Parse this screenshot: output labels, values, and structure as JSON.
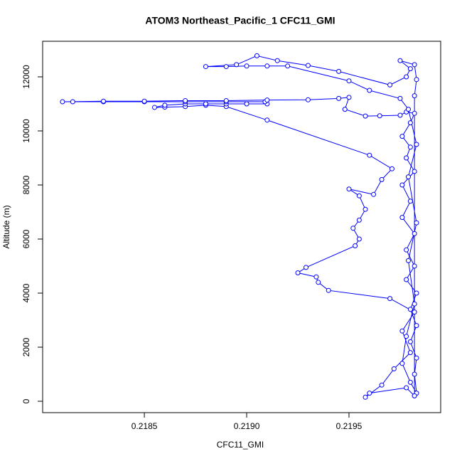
{
  "chart_data": {
    "type": "line",
    "title": "ATOM3 Northeast_Pacific_1 CFC11_GMI",
    "x_label": "CFC11_GMI",
    "y_label": "Altitude (m)",
    "color": "#0000ff",
    "x": [
      0.21982,
      0.21978,
      0.2196,
      0.21958,
      0.21966,
      0.21972,
      0.2198,
      0.21976,
      0.21982,
      0.2197,
      0.2194,
      0.21935,
      0.21934,
      0.21925,
      0.21929,
      0.21953,
      0.21955,
      0.21952,
      0.21955,
      0.21958,
      0.21955,
      0.2195,
      0.21962,
      0.21966,
      0.21971,
      0.2196,
      0.2191,
      0.2189,
      0.2188,
      0.2187,
      0.2186,
      0.21855,
      0.2186,
      0.2187,
      0.2188,
      0.2189,
      0.219,
      0.2191,
      0.21909,
      0.2189,
      0.2187,
      0.2185,
      0.2183,
      0.21815,
      0.2181,
      0.2183,
      0.2185,
      0.2187,
      0.2189,
      0.2191,
      0.2193,
      0.21945,
      0.2195,
      0.21948,
      0.21958,
      0.21965,
      0.21975,
      0.21978,
      0.21982,
      0.2198,
      0.21976,
      0.2198,
      0.21978,
      0.21982,
      0.21976,
      0.2198,
      0.21976,
      0.21982,
      0.21978,
      0.21982,
      0.21978,
      0.21983,
      0.2198,
      0.21983,
      0.2198,
      0.21983,
      0.21982,
      0.21983,
      0.2198,
      0.21976,
      0.21978,
      0.21982,
      0.21979,
      0.21983,
      0.21979,
      0.21983,
      0.21979,
      0.21975,
      0.2196,
      0.2195,
      0.2192,
      0.2191,
      0.219,
      0.2189,
      0.2188,
      0.21895,
      0.21905,
      0.21915,
      0.2193,
      0.21945,
      0.2197,
      0.21978,
      0.2198,
      0.21975,
      0.21982,
      0.21983,
      0.21982,
      0.21982
    ],
    "y": [
      200,
      500,
      300,
      150,
      600,
      1200,
      1800,
      2600,
      3300,
      3800,
      4100,
      4400,
      4600,
      4750,
      4950,
      5750,
      6000,
      6400,
      6700,
      7100,
      7600,
      7850,
      7650,
      8200,
      8600,
      9100,
      10400,
      10900,
      10950,
      10900,
      10880,
      10870,
      10950,
      11000,
      11000,
      11000,
      11000,
      11000,
      11080,
      11080,
      11080,
      11080,
      11080,
      11080,
      11080,
      11100,
      11100,
      11120,
      11120,
      11140,
      11150,
      11200,
      11240,
      10800,
      10550,
      10560,
      10580,
      10700,
      10650,
      10300,
      9800,
      9400,
      9000,
      8500,
      8000,
      7400,
      6800,
      6200,
      5600,
      5000,
      4500,
      4000,
      3400,
      2800,
      2200,
      1600,
      1000,
      300,
      700,
      1400,
      2400,
      3600,
      5200,
      6600,
      8300,
      9500,
      10800,
      11200,
      11500,
      11850,
      12400,
      12400,
      12400,
      12380,
      12380,
      12450,
      12780,
      12600,
      12420,
      12200,
      11700,
      12000,
      12300,
      12600,
      12450,
      11900,
      11300,
      200
    ],
    "xlim": [
      0.218003,
      0.219948
    ],
    "ylim": [
      -421,
      13316
    ],
    "xticks": [
      0.2185,
      {
        "value": 0.219,
        "label": "0.2190"
      },
      0.2195
    ],
    "yticks": [
      0,
      2000,
      4000,
      6000,
      8000,
      10000,
      12000
    ]
  }
}
